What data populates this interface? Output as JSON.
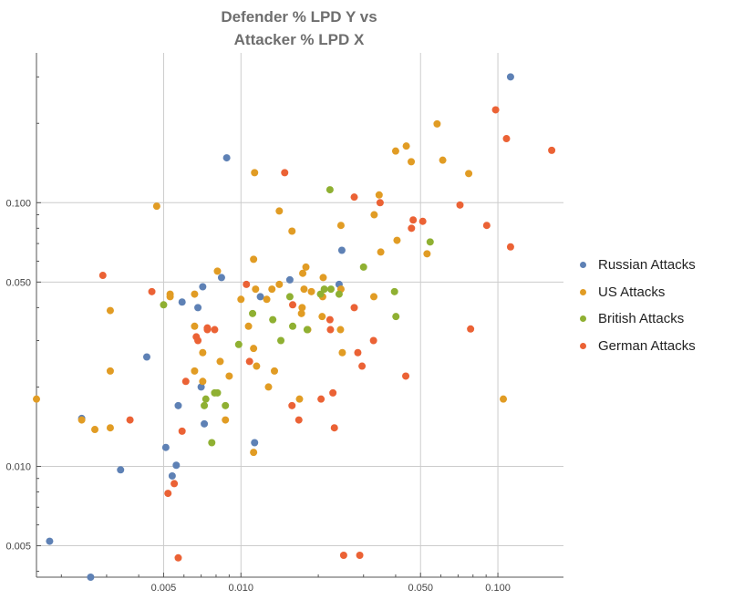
{
  "chart_data": {
    "type": "scatter",
    "title": [
      "Defender % LPD Y vs",
      "Attacker % LPD X"
    ],
    "xlabel": "",
    "ylabel": "",
    "xscale": "log",
    "yscale": "log",
    "xlim": [
      0.0016,
      0.18
    ],
    "ylim": [
      0.0038,
      0.37
    ],
    "xticks": [
      {
        "value": 0.005,
        "label": "0.005"
      },
      {
        "value": 0.01,
        "label": "0.010"
      },
      {
        "value": 0.05,
        "label": "0.050"
      },
      {
        "value": 0.1,
        "label": "0.100"
      }
    ],
    "yticks": [
      {
        "value": 0.005,
        "label": "0.005"
      },
      {
        "value": 0.01,
        "label": "0.010"
      },
      {
        "value": 0.05,
        "label": "0.050"
      },
      {
        "value": 0.1,
        "label": "0.100"
      }
    ],
    "grid": true,
    "legend_position": "right",
    "series": [
      {
        "name": "Russian Attacks",
        "color": "#5e81b5",
        "points": [
          [
            0.112,
            0.3
          ],
          [
            0.0088,
            0.148
          ],
          [
            0.0247,
            0.066
          ],
          [
            0.0241,
            0.049
          ],
          [
            0.0084,
            0.052
          ],
          [
            0.0155,
            0.051
          ],
          [
            0.0071,
            0.048
          ],
          [
            0.0119,
            0.044
          ],
          [
            0.0059,
            0.042
          ],
          [
            0.0068,
            0.04
          ],
          [
            0.0043,
            0.026
          ],
          [
            0.007,
            0.02
          ],
          [
            0.0057,
            0.017
          ],
          [
            0.0072,
            0.0145
          ],
          [
            0.0024,
            0.0152
          ],
          [
            0.0113,
            0.0123
          ],
          [
            0.0051,
            0.0118
          ],
          [
            0.0056,
            0.0101
          ],
          [
            0.0034,
            0.0097
          ],
          [
            0.0054,
            0.0092
          ],
          [
            0.0018,
            0.0052
          ],
          [
            0.0026,
            0.0038
          ]
        ]
      },
      {
        "name": "US Attacks",
        "color": "#e19c24",
        "points": [
          [
            0.058,
            0.199
          ],
          [
            0.044,
            0.164
          ],
          [
            0.04,
            0.157
          ],
          [
            0.046,
            0.143
          ],
          [
            0.061,
            0.145
          ],
          [
            0.077,
            0.129
          ],
          [
            0.0113,
            0.13
          ],
          [
            0.0345,
            0.107
          ],
          [
            0.0047,
            0.097
          ],
          [
            0.0141,
            0.093
          ],
          [
            0.033,
            0.09
          ],
          [
            0.0245,
            0.082
          ],
          [
            0.0158,
            0.078
          ],
          [
            0.0405,
            0.072
          ],
          [
            0.035,
            0.065
          ],
          [
            0.053,
            0.064
          ],
          [
            0.0112,
            0.061
          ],
          [
            0.0179,
            0.057
          ],
          [
            0.0174,
            0.054
          ],
          [
            0.0081,
            0.055
          ],
          [
            0.0209,
            0.052
          ],
          [
            0.0141,
            0.049
          ],
          [
            0.0114,
            0.047
          ],
          [
            0.0176,
            0.047
          ],
          [
            0.0132,
            0.047
          ],
          [
            0.0245,
            0.047
          ],
          [
            0.0053,
            0.045
          ],
          [
            0.0066,
            0.045
          ],
          [
            0.0188,
            0.046
          ],
          [
            0.0208,
            0.044
          ],
          [
            0.0329,
            0.044
          ],
          [
            0.01,
            0.043
          ],
          [
            0.0126,
            0.043
          ],
          [
            0.0053,
            0.044
          ],
          [
            0.0031,
            0.039
          ],
          [
            0.0173,
            0.04
          ],
          [
            0.0207,
            0.037
          ],
          [
            0.0172,
            0.038
          ],
          [
            0.0107,
            0.034
          ],
          [
            0.0066,
            0.034
          ],
          [
            0.0182,
            0.033
          ],
          [
            0.0244,
            0.033
          ],
          [
            0.0112,
            0.028
          ],
          [
            0.0071,
            0.027
          ],
          [
            0.0248,
            0.027
          ],
          [
            0.0083,
            0.025
          ],
          [
            0.0115,
            0.024
          ],
          [
            0.0066,
            0.023
          ],
          [
            0.0135,
            0.023
          ],
          [
            0.0031,
            0.023
          ],
          [
            0.009,
            0.022
          ],
          [
            0.0071,
            0.021
          ],
          [
            0.0128,
            0.02
          ],
          [
            0.0169,
            0.018
          ],
          [
            0.105,
            0.018
          ],
          [
            0.0016,
            0.018
          ],
          [
            0.0087,
            0.015
          ],
          [
            0.0024,
            0.015
          ],
          [
            0.0031,
            0.014
          ],
          [
            0.0027,
            0.0138
          ],
          [
            0.0112,
            0.0113
          ]
        ]
      },
      {
        "name": "British Attacks",
        "color": "#8fb032",
        "points": [
          [
            0.0222,
            0.112
          ],
          [
            0.0545,
            0.071
          ],
          [
            0.03,
            0.057
          ],
          [
            0.0211,
            0.047
          ],
          [
            0.0224,
            0.047
          ],
          [
            0.0396,
            0.046
          ],
          [
            0.0204,
            0.045
          ],
          [
            0.0241,
            0.045
          ],
          [
            0.0155,
            0.044
          ],
          [
            0.005,
            0.041
          ],
          [
            0.0111,
            0.038
          ],
          [
            0.0401,
            0.037
          ],
          [
            0.0133,
            0.036
          ],
          [
            0.0159,
            0.034
          ],
          [
            0.0181,
            0.033
          ],
          [
            0.0143,
            0.03
          ],
          [
            0.0098,
            0.029
          ],
          [
            0.0081,
            0.019
          ],
          [
            0.0079,
            0.019
          ],
          [
            0.0073,
            0.018
          ],
          [
            0.0072,
            0.017
          ],
          [
            0.0087,
            0.017
          ],
          [
            0.0077,
            0.0123
          ]
        ]
      },
      {
        "name": "German Attacks",
        "color": "#eb6235",
        "points": [
          [
            0.108,
            0.175
          ],
          [
            0.098,
            0.225
          ],
          [
            0.162,
            0.158
          ],
          [
            0.0148,
            0.13
          ],
          [
            0.0276,
            0.105
          ],
          [
            0.0348,
            0.1
          ],
          [
            0.0712,
            0.098
          ],
          [
            0.0468,
            0.086
          ],
          [
            0.051,
            0.085
          ],
          [
            0.0461,
            0.08
          ],
          [
            0.0905,
            0.082
          ],
          [
            0.112,
            0.068
          ],
          [
            0.0029,
            0.053
          ],
          [
            0.0105,
            0.049
          ],
          [
            0.0045,
            0.046
          ],
          [
            0.0159,
            0.041
          ],
          [
            0.0276,
            0.04
          ],
          [
            0.0222,
            0.036
          ],
          [
            0.0067,
            0.031
          ],
          [
            0.0068,
            0.03
          ],
          [
            0.0074,
            0.033
          ],
          [
            0.0079,
            0.033
          ],
          [
            0.0223,
            0.033
          ],
          [
            0.0328,
            0.03
          ],
          [
            0.0285,
            0.027
          ],
          [
            0.0074,
            0.0334
          ],
          [
            0.0074,
            0.0335
          ],
          [
            0.0108,
            0.025
          ],
          [
            0.0296,
            0.024
          ],
          [
            0.0061,
            0.021
          ],
          [
            0.0438,
            0.022
          ],
          [
            0.0228,
            0.019
          ],
          [
            0.0205,
            0.018
          ],
          [
            0.0158,
            0.017
          ],
          [
            0.0168,
            0.015
          ],
          [
            0.0231,
            0.014
          ],
          [
            0.0037,
            0.015
          ],
          [
            0.0059,
            0.0136
          ],
          [
            0.0055,
            0.0086
          ],
          [
            0.0052,
            0.0079
          ],
          [
            0.0783,
            0.0332
          ],
          [
            0.0251,
            0.0046
          ],
          [
            0.029,
            0.0046
          ],
          [
            0.0057,
            0.0045
          ]
        ]
      }
    ]
  }
}
